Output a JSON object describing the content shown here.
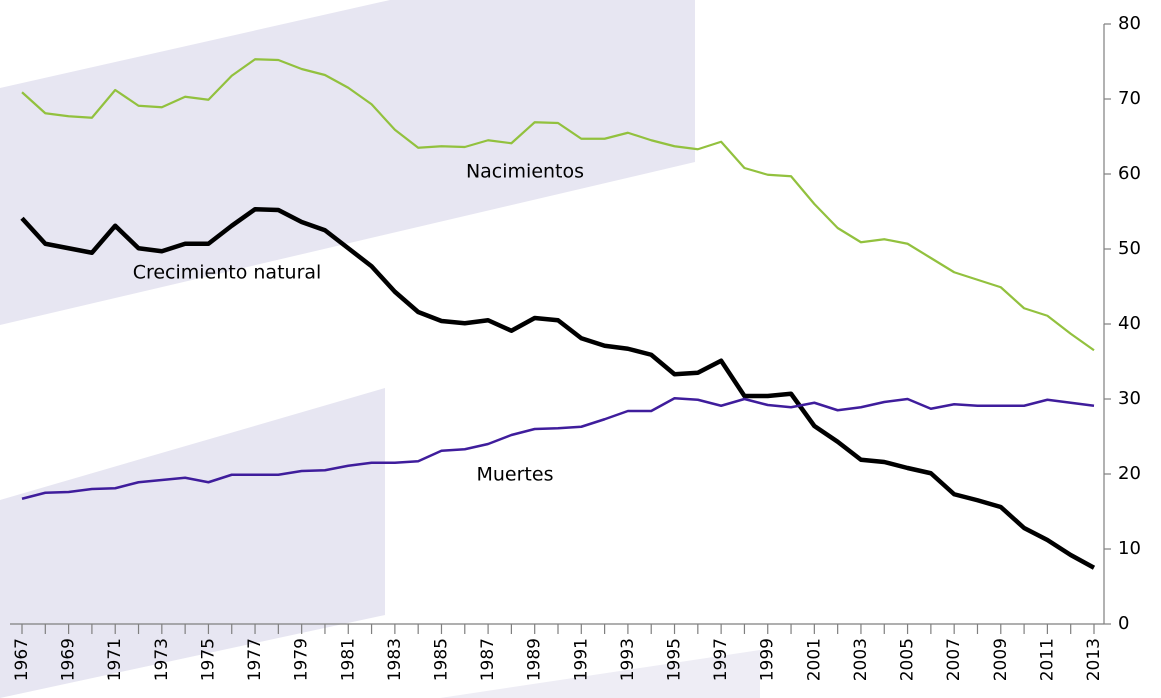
{
  "chart_data": {
    "type": "line",
    "x": [
      1967,
      1968,
      1969,
      1970,
      1971,
      1972,
      1973,
      1974,
      1975,
      1976,
      1977,
      1978,
      1979,
      1980,
      1981,
      1982,
      1983,
      1984,
      1985,
      1986,
      1987,
      1988,
      1989,
      1990,
      1991,
      1992,
      1993,
      1994,
      1995,
      1996,
      1997,
      1998,
      1999,
      2000,
      2001,
      2002,
      2003,
      2004,
      2005,
      2006,
      2007,
      2008,
      2009,
      2010,
      2011,
      2012,
      2013
    ],
    "xlim": [
      1967,
      2013
    ],
    "xticks": [
      1967,
      1969,
      1971,
      1973,
      1975,
      1977,
      1979,
      1981,
      1983,
      1985,
      1987,
      1989,
      1991,
      1993,
      1995,
      1997,
      1999,
      2001,
      2003,
      2005,
      2007,
      2009,
      2011,
      2013
    ],
    "ylim": [
      0,
      80
    ],
    "yticks": [
      0,
      10,
      20,
      30,
      40,
      50,
      60,
      70,
      80
    ],
    "series": [
      {
        "name": "Nacimientos",
        "color": "#92c13e",
        "values": [
          70.9,
          68.1,
          67.7,
          67.5,
          71.2,
          69.1,
          68.9,
          70.3,
          69.9,
          73.1,
          75.3,
          75.2,
          74.0,
          73.2,
          71.5,
          69.3,
          65.9,
          63.5,
          63.7,
          63.6,
          64.5,
          64.1,
          66.9,
          66.8,
          64.7,
          64.7,
          65.5,
          64.5,
          63.7,
          63.3,
          64.3,
          60.8,
          59.9,
          59.7,
          56.0,
          52.8,
          50.9,
          51.3,
          50.7,
          48.8,
          46.9,
          45.9,
          44.9,
          42.1,
          41.1,
          38.7,
          36.5
        ]
      },
      {
        "name": "Crecimiento natural",
        "color": "#000000",
        "values": [
          54.1,
          50.7,
          50.1,
          49.5,
          53.1,
          50.1,
          49.7,
          50.7,
          50.7,
          53.1,
          55.3,
          55.2,
          53.6,
          52.5,
          50.1,
          47.7,
          44.3,
          41.6,
          40.4,
          40.1,
          40.5,
          39.1,
          40.8,
          40.5,
          38.1,
          37.1,
          36.7,
          35.9,
          33.3,
          33.5,
          35.1,
          30.4,
          30.4,
          30.7,
          26.4,
          24.3,
          21.9,
          21.6,
          20.8,
          20.1,
          17.3,
          16.5,
          15.6,
          12.8,
          11.2,
          9.2,
          7.5
        ]
      },
      {
        "name": "Muertes",
        "color": "#3f1d9c",
        "values": [
          16.7,
          17.5,
          17.6,
          18.0,
          18.1,
          18.9,
          19.2,
          19.5,
          18.9,
          19.9,
          19.9,
          19.9,
          20.4,
          20.5,
          21.1,
          21.5,
          21.5,
          21.7,
          23.1,
          23.3,
          24.0,
          25.2,
          26.0,
          26.1,
          26.3,
          27.3,
          28.4,
          28.4,
          30.1,
          29.9,
          29.1,
          30.0,
          29.2,
          28.9,
          29.5,
          28.5,
          28.9,
          29.6,
          30.0,
          28.7,
          29.3,
          29.1,
          29.1,
          29.1,
          29.9,
          29.5,
          29.1
        ]
      }
    ]
  }
}
